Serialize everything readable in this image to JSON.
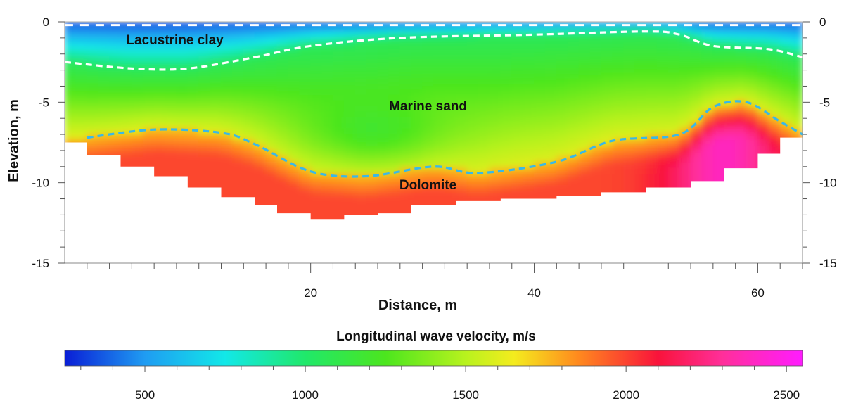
{
  "chart_data": {
    "type": "heatmap",
    "title": "",
    "xlabel": "Distance, m",
    "ylabel": "Elevation, m",
    "xlim": [
      -2,
      64
    ],
    "ylim": [
      -15,
      0
    ],
    "x_ticks": [
      20,
      40,
      60
    ],
    "y_ticks": [
      0,
      -5,
      -10,
      -15
    ],
    "grid": false,
    "colorbar": {
      "label": "Longitudinal wave velocity, m/s",
      "range": [
        250,
        2550
      ],
      "ticks": [
        500,
        1000,
        1500,
        2000,
        2500
      ],
      "stops": [
        {
          "v": 250,
          "color": "#0a1ed6"
        },
        {
          "v": 500,
          "color": "#1f9cf2"
        },
        {
          "v": 750,
          "color": "#12e8e8"
        },
        {
          "v": 1000,
          "color": "#20e86a"
        },
        {
          "v": 1250,
          "color": "#4ce61e"
        },
        {
          "v": 1500,
          "color": "#b8f21e"
        },
        {
          "v": 1650,
          "color": "#f4ec1e"
        },
        {
          "v": 1850,
          "color": "#ff8a1e"
        },
        {
          "v": 2100,
          "color": "#f9133b"
        },
        {
          "v": 2300,
          "color": "#ff2f9a"
        },
        {
          "v": 2550,
          "color": "#ff1cff"
        }
      ]
    },
    "annotations": [
      {
        "text": "Lacustrine clay",
        "x": 3.5,
        "y": -1.4
      },
      {
        "text": "Marine sand",
        "x": 30.5,
        "y": -5.5
      },
      {
        "text": "Dolomite",
        "x": 30.5,
        "y": -10.4
      }
    ],
    "boundaries": [
      {
        "name": "clay-sand boundary",
        "color": "#ffffff",
        "points": [
          [
            -2,
            -2.5
          ],
          [
            4,
            -2.9
          ],
          [
            9,
            -2.9
          ],
          [
            15,
            -2.2
          ],
          [
            20,
            -1.5
          ],
          [
            28,
            -1.0
          ],
          [
            40,
            -0.8
          ],
          [
            50,
            -0.6
          ],
          [
            53,
            -0.8
          ],
          [
            56,
            -1.5
          ],
          [
            61,
            -1.7
          ],
          [
            64,
            -2.2
          ]
        ]
      },
      {
        "name": "sand-dolomite boundary",
        "color": "#3ab8e6",
        "points": [
          [
            0,
            -7.2
          ],
          [
            6,
            -6.7
          ],
          [
            12,
            -6.9
          ],
          [
            15,
            -7.6
          ],
          [
            20,
            -9.3
          ],
          [
            25,
            -9.6
          ],
          [
            31,
            -9.0
          ],
          [
            35,
            -9.4
          ],
          [
            42,
            -8.7
          ],
          [
            47,
            -7.4
          ],
          [
            53,
            -7.0
          ],
          [
            56,
            -5.3
          ],
          [
            59,
            -5.0
          ],
          [
            62,
            -6.2
          ],
          [
            64,
            -7.0
          ]
        ]
      },
      {
        "name": "surface",
        "color": "#ffffff",
        "points": [
          [
            -2,
            -0.2
          ],
          [
            64,
            -0.2
          ]
        ]
      }
    ],
    "profile_bottom": [
      [
        -2,
        -6.7
      ],
      [
        0,
        -7.5
      ],
      [
        3,
        -8.3
      ],
      [
        6,
        -9.0
      ],
      [
        9,
        -9.6
      ],
      [
        12,
        -10.3
      ],
      [
        15,
        -10.9
      ],
      [
        17,
        -11.4
      ],
      [
        20,
        -11.9
      ],
      [
        23,
        -12.3
      ],
      [
        26,
        -12.0
      ],
      [
        29,
        -11.9
      ],
      [
        33,
        -11.4
      ],
      [
        37,
        -11.1
      ],
      [
        42,
        -11.0
      ],
      [
        46,
        -10.8
      ],
      [
        50,
        -10.6
      ],
      [
        54,
        -10.3
      ],
      [
        57,
        -9.9
      ],
      [
        60,
        -9.1
      ],
      [
        62,
        -8.2
      ],
      [
        64,
        -7.2
      ]
    ]
  }
}
